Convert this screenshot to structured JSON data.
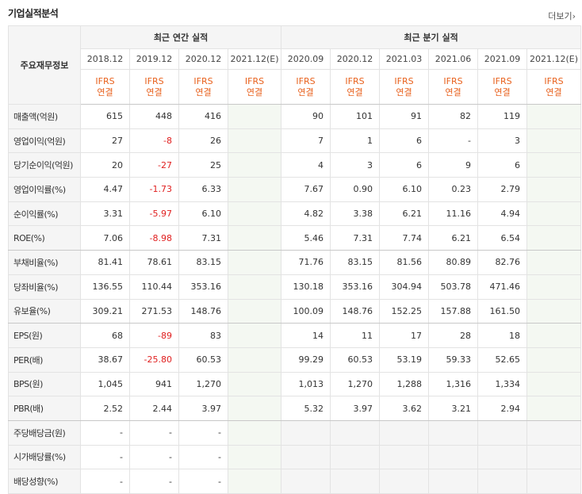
{
  "title": "기업실적분석",
  "more_label": "더보기",
  "more_icon": "chevron-right-icon",
  "header": {
    "corner_label": "주요재무정보",
    "annual_group": "최근 연간 실적",
    "quarter_group": "최근 분기 실적",
    "periods": [
      "2018.12",
      "2019.12",
      "2020.12",
      "2021.12(E)",
      "2020.09",
      "2020.12",
      "2021.03",
      "2021.06",
      "2021.09",
      "2021.12(E)"
    ],
    "ifrs": "IFRS",
    "consol": "연결"
  },
  "rows": [
    {
      "label": "매출액(억원)",
      "values": [
        "615",
        "448",
        "416",
        "",
        "90",
        "101",
        "91",
        "82",
        "119",
        ""
      ]
    },
    {
      "label": "영업이익(억원)",
      "values": [
        "27",
        "-8",
        "26",
        "",
        "7",
        "1",
        "6",
        "-",
        "3",
        ""
      ]
    },
    {
      "label": "당기순이익(억원)",
      "values": [
        "20",
        "-27",
        "25",
        "",
        "4",
        "3",
        "6",
        "9",
        "6",
        ""
      ]
    },
    {
      "label": "영업이익률(%)",
      "values": [
        "4.47",
        "-1.73",
        "6.33",
        "",
        "7.67",
        "0.90",
        "6.10",
        "0.23",
        "2.79",
        ""
      ]
    },
    {
      "label": "순이익률(%)",
      "values": [
        "3.31",
        "-5.97",
        "6.10",
        "",
        "4.82",
        "3.38",
        "6.21",
        "11.16",
        "4.94",
        ""
      ]
    },
    {
      "label": "ROE(%)",
      "values": [
        "7.06",
        "-8.98",
        "7.31",
        "",
        "5.46",
        "7.31",
        "7.74",
        "6.21",
        "6.54",
        ""
      ]
    },
    {
      "label": "부채비율(%)",
      "values": [
        "81.41",
        "78.61",
        "83.15",
        "",
        "71.76",
        "83.15",
        "81.56",
        "80.89",
        "82.76",
        ""
      ]
    },
    {
      "label": "당좌비율(%)",
      "values": [
        "136.55",
        "110.44",
        "353.16",
        "",
        "130.18",
        "353.16",
        "304.94",
        "503.78",
        "471.46",
        ""
      ]
    },
    {
      "label": "유보율(%)",
      "values": [
        "309.21",
        "271.53",
        "148.76",
        "",
        "100.09",
        "148.76",
        "152.25",
        "157.88",
        "161.50",
        ""
      ]
    },
    {
      "label": "EPS(원)",
      "values": [
        "68",
        "-89",
        "83",
        "",
        "14",
        "11",
        "17",
        "28",
        "18",
        ""
      ]
    },
    {
      "label": "PER(배)",
      "values": [
        "38.67",
        "-25.80",
        "60.53",
        "",
        "99.29",
        "60.53",
        "53.19",
        "59.33",
        "52.65",
        ""
      ]
    },
    {
      "label": "BPS(원)",
      "values": [
        "1,045",
        "941",
        "1,270",
        "",
        "1,013",
        "1,270",
        "1,288",
        "1,316",
        "1,334",
        ""
      ]
    },
    {
      "label": "PBR(배)",
      "values": [
        "2.52",
        "2.44",
        "3.97",
        "",
        "5.32",
        "3.97",
        "3.62",
        "3.21",
        "2.94",
        ""
      ]
    },
    {
      "label": "주당배당금(원)",
      "values": [
        "-",
        "-",
        "-",
        "",
        "",
        "",
        "",
        "",
        "",
        ""
      ]
    },
    {
      "label": "시가배당률(%)",
      "values": [
        "-",
        "-",
        "-",
        "",
        "",
        "",
        "",
        "",
        "",
        ""
      ]
    },
    {
      "label": "배당성향(%)",
      "values": [
        "-",
        "-",
        "-",
        "",
        "",
        "",
        "",
        "",
        "",
        ""
      ]
    }
  ],
  "colors": {
    "accent": "#e8611d",
    "negative": "#e02020",
    "estimate_bg": "#f4f8f2",
    "header_bg": "#f5f5f5"
  }
}
